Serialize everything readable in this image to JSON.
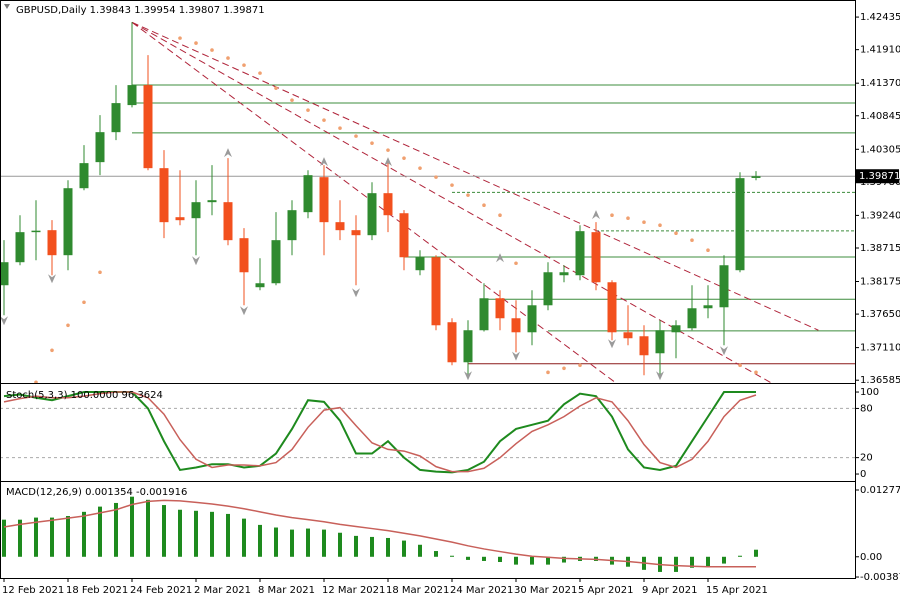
{
  "chart_data": [
    {
      "type": "candlestick",
      "title": "GBPUSD,Daily  1.39843 1.39954 1.39807 1.39871",
      "categories": [
        "12 Feb 2021",
        null,
        null,
        null,
        "18 Feb 2021",
        null,
        null,
        null,
        "24 Feb 2021",
        null,
        null,
        null,
        "2 Mar 2021",
        null,
        null,
        null,
        "8 Mar 2021",
        null,
        null,
        null,
        "12 Mar 2021",
        null,
        null,
        null,
        "18 Mar 2021",
        null,
        null,
        null,
        "24 Mar 2021",
        null,
        null,
        null,
        "30 Mar 2021",
        null,
        null,
        null,
        "5 Apr 2021",
        null,
        null,
        null,
        "9 Apr 2021",
        null,
        null,
        null,
        "15 Apr 2021",
        null,
        null,
        null
      ],
      "open": [
        1.38115,
        1.38486,
        1.3897,
        1.39002,
        1.38599,
        1.39678,
        1.40098,
        1.40581,
        1.41017,
        1.41339,
        1.40001,
        1.39211,
        1.39195,
        1.39453,
        1.39453,
        1.38873,
        1.38083,
        1.38147,
        1.38841,
        1.39292,
        1.39856,
        1.39131,
        1.39002,
        1.38921,
        1.39598,
        1.39275,
        1.38357,
        1.38566,
        1.37519,
        1.36874,
        1.3739,
        1.37905,
        1.37583,
        1.37357,
        1.37792,
        1.38276,
        1.38276,
        1.3897,
        1.38163,
        1.37357,
        1.37293,
        1.37019,
        1.37357,
        1.37422,
        1.37744,
        1.3776,
        1.38357,
        1.39843
      ],
      "high": [
        1.38841,
        1.39243,
        1.39485,
        1.39163,
        1.39807,
        1.40372,
        1.40855,
        1.41339,
        1.42354,
        1.41822,
        1.40291,
        1.39968,
        1.39807,
        1.40049,
        1.40162,
        1.39034,
        1.3855,
        1.39292,
        1.39485,
        1.39968,
        1.40049,
        1.39485,
        1.39243,
        1.39775,
        1.4013,
        1.39324,
        1.38679,
        1.38599,
        1.37583,
        1.37551,
        1.38147,
        1.38034,
        1.37873,
        1.38034,
        1.38486,
        1.38437,
        1.39082,
        1.39131,
        1.38195,
        1.37792,
        1.3747,
        1.37551,
        1.37551,
        1.38115,
        1.38115,
        1.38599,
        1.39936,
        1.39954
      ],
      "low": [
        1.37631,
        1.38437,
        1.38518,
        1.38276,
        1.38357,
        1.39646,
        1.39888,
        1.40452,
        1.4098,
        1.39968,
        1.38873,
        1.39082,
        1.38599,
        1.39243,
        1.3876,
        1.37792,
        1.38034,
        1.38115,
        1.38599,
        1.39195,
        1.38599,
        1.38841,
        1.38115,
        1.38841,
        1.3897,
        1.38357,
        1.38276,
        1.3739,
        1.36825,
        1.36664,
        1.3737,
        1.3739,
        1.37035,
        1.37148,
        1.37712,
        1.38163,
        1.38195,
        1.38034,
        1.37228,
        1.37148,
        1.36664,
        1.36664,
        1.36938,
        1.3739,
        1.37583,
        1.37148,
        1.38324,
        1.39807
      ],
      "close": [
        1.38486,
        1.3897,
        1.38994,
        1.38599,
        1.39678,
        1.40082,
        1.40581,
        1.41049,
        1.41339,
        1.40001,
        1.39131,
        1.39163,
        1.39453,
        1.39485,
        1.38841,
        1.38324,
        1.38147,
        1.38841,
        1.39324,
        1.39888,
        1.39131,
        1.39002,
        1.38921,
        1.39598,
        1.39243,
        1.38566,
        1.38566,
        1.3747,
        1.36874,
        1.3739,
        1.37905,
        1.37583,
        1.37357,
        1.37792,
        1.38324,
        1.38324,
        1.38986,
        1.38163,
        1.37357,
        1.37261,
        1.36987,
        1.3739,
        1.3747,
        1.37744,
        1.37792,
        1.38437,
        1.3984,
        1.39871
      ],
      "up_color": "#2f8a2f",
      "down_color": "#f2501e",
      "sar": {
        "color": "#f0a070",
        "values": [
          null,
          null,
          1.36551,
          1.37067,
          1.3747,
          1.37841,
          1.38324,
          null,
          null,
          null,
          null,
          1.42096,
          1.42016,
          1.41903,
          1.41774,
          1.41661,
          1.41532,
          1.4129,
          1.41097,
          1.40936,
          1.40775,
          1.40646,
          1.40517,
          1.40404,
          1.40291,
          1.40162,
          1.40001,
          1.39856,
          1.39727,
          1.39566,
          1.39404,
          1.39243,
          1.38469,
          null,
          1.36712,
          1.36777,
          1.36825,
          null,
          1.39243,
          1.39195,
          1.3913,
          1.39082,
          1.38953,
          1.3884,
          1.38679,
          null,
          1.36825,
          1.36712
        ]
      },
      "fractals_up": [
        null,
        null,
        null,
        null,
        null,
        null,
        null,
        null,
        null,
        null,
        null,
        null,
        null,
        null,
        1.40323,
        null,
        null,
        null,
        null,
        null,
        1.40178,
        null,
        null,
        null,
        1.40178,
        null,
        null,
        null,
        null,
        null,
        null,
        1.38631,
        null,
        null,
        null,
        null,
        null,
        1.39324,
        null,
        null,
        null,
        null,
        null,
        null,
        null,
        null,
        null,
        null
      ],
      "fractals_down": [
        1.3747,
        null,
        null,
        1.38147,
        null,
        null,
        null,
        null,
        null,
        null,
        null,
        null,
        1.38437,
        null,
        null,
        1.37631,
        null,
        null,
        null,
        null,
        null,
        null,
        1.37921,
        null,
        null,
        null,
        null,
        null,
        null,
        1.36585,
        null,
        null,
        1.369,
        null,
        null,
        null,
        null,
        null,
        1.371,
        null,
        null,
        1.36585,
        null,
        null,
        null,
        1.36987,
        null,
        null
      ],
      "fractal_color": "#9a9a9a",
      "levels": [
        {
          "value": 1.4134,
          "from": 8,
          "color": "#3c8c3c",
          "dashed": false
        },
        {
          "value": 1.4105,
          "from": 8,
          "color": "#3c8c3c",
          "dashed": false
        },
        {
          "value": 1.4057,
          "from": 8,
          "color": "#3c8c3c",
          "dashed": false
        },
        {
          "value": 1.3961,
          "from": 28,
          "color": "#3c8c3c",
          "dashed": true
        },
        {
          "value": 1.3899,
          "from": 37,
          "color": "#3c8c3c",
          "dashed": true
        },
        {
          "value": 1.3857,
          "from": 25,
          "color": "#3c8c3c",
          "dashed": false
        },
        {
          "value": 1.3789,
          "from": 30,
          "color": "#3c8c3c",
          "dashed": false
        },
        {
          "value": 1.3738,
          "from": 34,
          "color": "#3c8c3c",
          "dashed": false
        },
        {
          "value": 1.3685,
          "from": 29,
          "color": "#8b1a1a",
          "dashed": false
        }
      ],
      "trendlines": [
        {
          "x1": 8,
          "y1": 1.4235,
          "x2": 50.9,
          "y2": 1.3739
        },
        {
          "x1": 8,
          "y1": 1.4235,
          "x2": 47.9,
          "y2": 1.3655
        },
        {
          "x1": 8,
          "y1": 1.4235,
          "x2": 38.2,
          "y2": 1.3655
        }
      ],
      "trend_color": "#b0243a",
      "ylim": [
        1.3654,
        1.4271
      ],
      "yticks": [
        1.42435,
        {
          "value": 1.4191,
          "label": "1.41910"
        },
        {
          "value": 1.4137,
          "label": "1.41370"
        },
        1.40845,
        {
          "value": 1.40305,
          "label": "1.40305"
        },
        {
          "value": 1.3978,
          "label": "1.39780"
        },
        {
          "value": 1.3924,
          "label": "1.39240"
        },
        1.38715,
        1.38175,
        {
          "value": 1.3765,
          "label": "1.37650"
        },
        {
          "value": 1.3711,
          "label": "1.37110"
        },
        1.36585
      ]
    },
    {
      "type": "line",
      "title": "Stoch(5,3,3) 100.0000 96.3624",
      "series": [
        {
          "color": "#1e8a1e",
          "values": [
            95,
            97,
            93,
            90,
            95,
            100,
            100,
            100,
            100,
            80,
            40,
            5,
            8,
            12,
            12,
            8,
            10,
            25,
            55,
            90,
            88,
            65,
            25,
            25,
            40,
            20,
            5,
            3,
            2,
            5,
            15,
            40,
            55,
            60,
            65,
            85,
            98,
            95,
            70,
            30,
            8,
            5,
            10,
            40,
            70,
            100,
            100,
            100
          ]
        },
        {
          "color": "#c8605a",
          "values": [
            88,
            92,
            95,
            93,
            93,
            95,
            98,
            100,
            100,
            93,
            73,
            42,
            18,
            8,
            11,
            11,
            10,
            14,
            30,
            57,
            78,
            81,
            59,
            38,
            30,
            28,
            22,
            9,
            3,
            3,
            7,
            20,
            37,
            52,
            60,
            70,
            83,
            93,
            88,
            65,
            36,
            14,
            8,
            18,
            40,
            70,
            90,
            96.3624
          ]
        }
      ],
      "levels": [
        20,
        80
      ],
      "ylim": [
        -8.5,
        109.8
      ],
      "yticks": [
        0,
        20,
        80,
        100
      ]
    },
    {
      "type": "macd",
      "title": "MACD(12,26,9) 0.001354 -0.001916",
      "values": [
        0.0071,
        0.0071,
        0.0075,
        0.0075,
        0.0078,
        0.0086,
        0.0096,
        0.0103,
        0.0115,
        0.0109,
        0.0099,
        0.009,
        0.0088,
        0.0086,
        0.0082,
        0.0073,
        0.0061,
        0.0056,
        0.0052,
        0.0054,
        0.0052,
        0.0046,
        0.004,
        0.0038,
        0.0036,
        0.0031,
        0.0023,
        0.0011,
        0.0002,
        -0.0006,
        -0.0008,
        -0.001,
        -0.0015,
        -0.0015,
        -0.0015,
        -0.0011,
        -0.0008,
        -0.0008,
        -0.0015,
        -0.0019,
        -0.0025,
        -0.0029,
        -0.0029,
        -0.0021,
        -0.0019,
        -0.0013,
        0.0002,
        0.001354
      ],
      "color": "#1e8a1e",
      "signal": {
        "color": "#c8605a",
        "values": [
          0.0057,
          0.0062,
          0.0066,
          0.007,
          0.0074,
          0.0078,
          0.0084,
          0.009,
          0.01,
          0.0106,
          0.0108,
          0.0107,
          0.0104,
          0.0101,
          0.0097,
          0.0092,
          0.0086,
          0.008,
          0.0075,
          0.0071,
          0.0067,
          0.0062,
          0.0058,
          0.0054,
          0.005,
          0.0045,
          0.004,
          0.0034,
          0.0028,
          0.0021,
          0.0015,
          0.001,
          0.0005,
          0.0001,
          -0.0001,
          -0.0003,
          -0.0004,
          -0.0005,
          -0.0007,
          -0.0009,
          -0.0012,
          -0.0015,
          -0.0017,
          -0.0018,
          -0.0019,
          -0.0019,
          -0.0019,
          -0.001916
        ]
      },
      "ylim": [
        -0.00406,
        0.01431
      ],
      "yticks": [
        0.012777,
        {
          "value": 0,
          "label": "0.00"
        },
        -0.003873
      ]
    }
  ]
}
